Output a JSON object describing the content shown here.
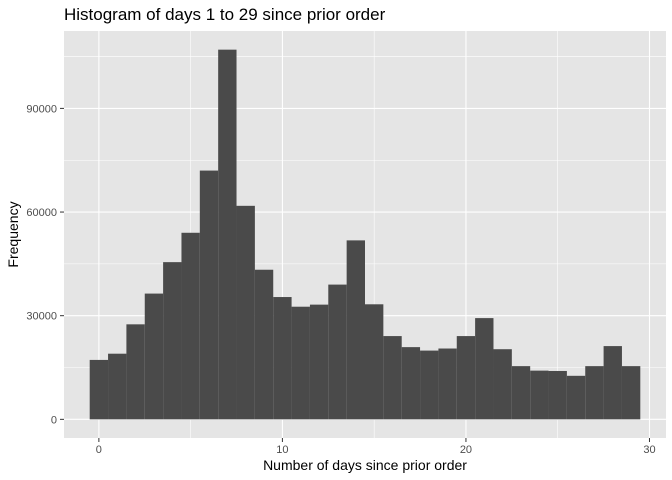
{
  "chart_data": {
    "type": "bar",
    "title": "Histogram of days 1 to 29 since prior order",
    "xlabel": "Number of days since prior order",
    "ylabel": "Frequency",
    "x": [
      0,
      1,
      2,
      3,
      4,
      5,
      6,
      7,
      8,
      9,
      10,
      11,
      12,
      13,
      14,
      15,
      16,
      17,
      18,
      19,
      20,
      21,
      22,
      23,
      24,
      25,
      26,
      27,
      28,
      29
    ],
    "values": [
      17200,
      19000,
      27500,
      36400,
      45500,
      54000,
      72000,
      107000,
      61800,
      43300,
      35400,
      32600,
      33200,
      39000,
      51800,
      33300,
      24100,
      20900,
      19900,
      20500,
      24100,
      29300,
      20300,
      15400,
      14100,
      14000,
      12600,
      15400,
      21200,
      15400
    ],
    "xlim": [
      -1.9,
      30.9
    ],
    "ylim": [
      -5400,
      112400
    ],
    "x_ticks": [
      0,
      10,
      20,
      30
    ],
    "y_ticks": [
      0,
      30000,
      60000,
      90000
    ],
    "x_tick_labels": [
      "0",
      "10",
      "20",
      "30"
    ],
    "y_tick_labels": [
      "0",
      "30000",
      "60000",
      "90000"
    ],
    "grid": true,
    "colors": {
      "panel": "#e5e5e5",
      "grid": "#ffffff",
      "bar": "#4a4a4a"
    }
  }
}
